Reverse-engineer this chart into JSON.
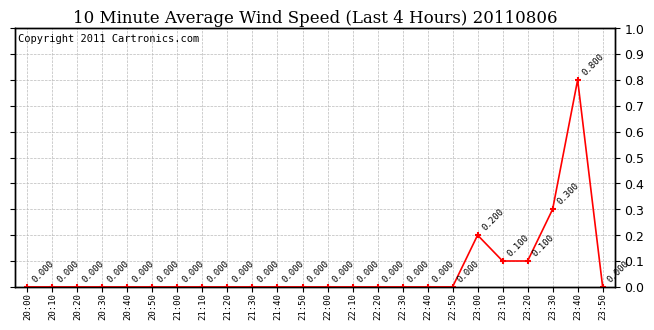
{
  "title": "10 Minute Average Wind Speed (Last 4 Hours) 20110806",
  "copyright_text": "Copyright 2011 Cartronics.com",
  "x_labels": [
    "20:00",
    "20:10",
    "20:20",
    "20:30",
    "20:40",
    "20:50",
    "21:00",
    "21:10",
    "21:20",
    "21:30",
    "21:40",
    "21:50",
    "22:00",
    "22:10",
    "22:20",
    "22:30",
    "22:40",
    "22:50",
    "23:00",
    "23:10",
    "23:20",
    "23:30",
    "23:40",
    "23:50"
  ],
  "y_values": [
    0.0,
    0.0,
    0.0,
    0.0,
    0.0,
    0.0,
    0.0,
    0.0,
    0.0,
    0.0,
    0.0,
    0.0,
    0.0,
    0.0,
    0.0,
    0.0,
    0.0,
    0.0,
    0.2,
    0.1,
    0.1,
    0.3,
    0.8,
    0.0
  ],
  "point_labels": [
    "0.000",
    "0.000",
    "0.000",
    "0.000",
    "0.000",
    "0.000",
    "0.000",
    "0.000",
    "0.000",
    "0.000",
    "0.000",
    "0.000",
    "0.000",
    "0.000",
    "0.000",
    "0.000",
    "0.000",
    "0.000",
    "0.200",
    "0.100",
    "0.100",
    "0.300",
    "0.800",
    "0.000"
  ],
  "line_color": "#ff0000",
  "marker_color": "#ff0000",
  "background_color": "#ffffff",
  "grid_color": "#bbbbbb",
  "ylim": [
    0.0,
    1.0
  ],
  "yticks_right": [
    0.0,
    0.1,
    0.2,
    0.3,
    0.4,
    0.5,
    0.6,
    0.7,
    0.8,
    0.9,
    1.0
  ],
  "title_fontsize": 12,
  "label_fontsize": 6.5,
  "tick_fontsize": 9,
  "copyright_fontsize": 7.5
}
